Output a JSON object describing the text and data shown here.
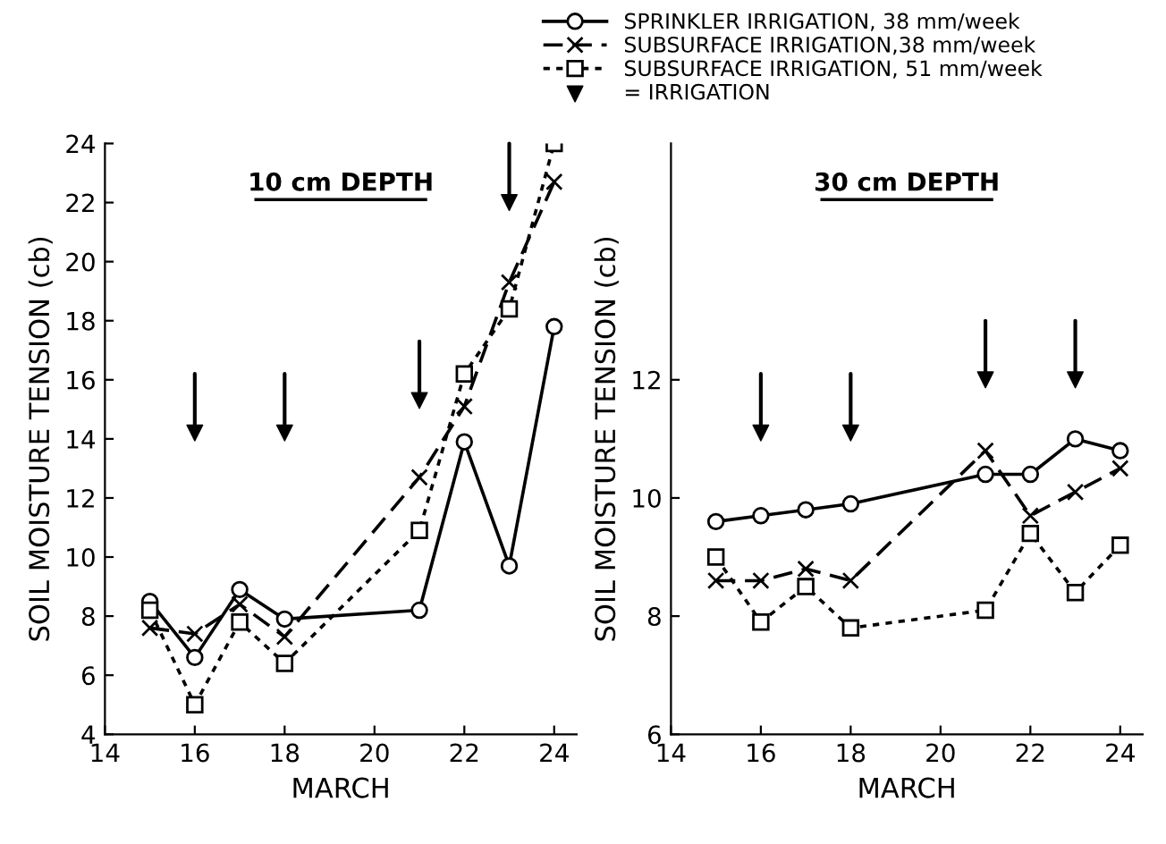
{
  "chart_data": [
    {
      "type": "line",
      "title": "10 cm DEPTH",
      "xlabel": "MARCH",
      "ylabel": "SOIL MOISTURE TENSION (cb)",
      "xlim": [
        14,
        24.5
      ],
      "xticks": [
        14,
        16,
        18,
        20,
        22,
        24
      ],
      "ylim": [
        4,
        24
      ],
      "yticks": [
        4,
        6,
        8,
        10,
        12,
        14,
        16,
        18,
        20,
        22,
        24
      ],
      "grid": false,
      "legend": "top",
      "series": [
        {
          "name": "SPRINKLER IRRIGATION, 38 mm/week",
          "color": "#000000",
          "marker": "circle",
          "line_style": "solid",
          "x": [
            15,
            16,
            17,
            18,
            21,
            22,
            23,
            24
          ],
          "values": [
            8.5,
            6.6,
            8.9,
            7.9,
            8.2,
            13.9,
            9.7,
            17.8
          ]
        },
        {
          "name": "SUBSURFACE IRRIGATION,38 mm/week",
          "color": "#000000",
          "marker": "cross",
          "line_style": "dashed",
          "x": [
            15,
            16,
            17,
            18,
            21,
            22,
            23,
            24
          ],
          "values": [
            7.6,
            7.4,
            8.4,
            7.3,
            12.7,
            15.1,
            19.3,
            22.7
          ]
        },
        {
          "name": "SUBSURFACE IRRIGATION, 51 mm/week",
          "color": "#000000",
          "marker": "square",
          "line_style": "dotted",
          "x": [
            15,
            16,
            17,
            18,
            21,
            22,
            23,
            24
          ],
          "values": [
            8.2,
            5.0,
            7.8,
            6.4,
            10.9,
            16.2,
            18.4,
            24.0
          ]
        },
        {
          "name": "= IRRIGATION",
          "type": "scatter",
          "color": "#000000",
          "marker": "triangle",
          "x": [
            16,
            18,
            21,
            23
          ],
          "values": [
            14.2,
            14.2,
            15.3,
            22.0
          ]
        }
      ]
    },
    {
      "type": "line",
      "title": "30 cm DEPTH",
      "xlabel": "MARCH",
      "ylabel": "SOIL MOISTURE TENSION (cb)",
      "xlim": [
        14,
        24.5
      ],
      "xticks": [
        14,
        16,
        18,
        20,
        22,
        24
      ],
      "ylim": [
        6,
        16
      ],
      "yticks": [
        6,
        8,
        10,
        12
      ],
      "grid": false,
      "series": [
        {
          "color": "#000000",
          "marker": "circle",
          "line_style": "solid",
          "x": [
            15,
            16,
            17,
            18,
            21,
            22,
            23,
            24
          ],
          "values": [
            9.6,
            9.7,
            9.8,
            9.9,
            10.4,
            10.4,
            11.0,
            10.8
          ]
        },
        {
          "color": "#000000",
          "marker": "cross",
          "line_style": "dashed",
          "x": [
            15,
            16,
            17,
            18,
            21,
            22,
            23,
            24
          ],
          "values": [
            8.6,
            8.6,
            8.8,
            8.6,
            10.8,
            9.7,
            10.1,
            10.5
          ]
        },
        {
          "color": "#000000",
          "marker": "square",
          "line_style": "dotted",
          "x": [
            15,
            16,
            17,
            18,
            21,
            22,
            23,
            24
          ],
          "values": [
            9.0,
            7.9,
            8.5,
            7.8,
            8.1,
            9.4,
            8.4,
            9.2
          ]
        },
        {
          "type": "scatter",
          "color": "#000000",
          "marker": "triangle",
          "x": [
            16,
            18,
            21,
            23
          ],
          "values": [
            11.1,
            11.1,
            12.0,
            12.0
          ]
        }
      ]
    }
  ]
}
